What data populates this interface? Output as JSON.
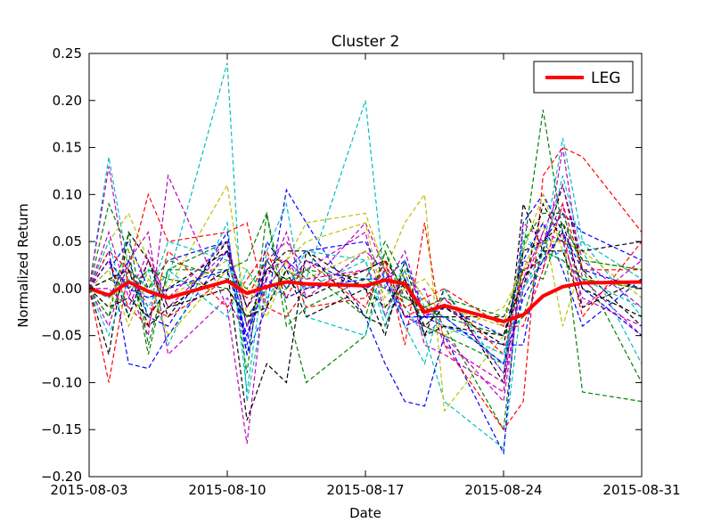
{
  "chart_data": {
    "type": "line",
    "title": "Cluster 2",
    "xlabel": "Date",
    "ylabel": "Normalized Return",
    "x_tick_labels": [
      "2015-08-03",
      "2015-08-10",
      "2015-08-17",
      "2015-08-24",
      "2015-08-31"
    ],
    "y_tick_labels": [
      "0.25",
      "0.20",
      "0.15",
      "0.10",
      "0.05",
      "0.00",
      "−0.05",
      "−0.10",
      "−0.15",
      "−0.20"
    ],
    "xlim": [
      "2015-08-03",
      "2015-08-31"
    ],
    "ylim": [
      -0.2,
      0.25
    ],
    "grid": false,
    "legend": {
      "position": "top-right",
      "entries": [
        {
          "name": "LEG",
          "color": "#ff0000"
        }
      ]
    },
    "x": [
      "2015-08-03",
      "2015-08-04",
      "2015-08-05",
      "2015-08-06",
      "2015-08-07",
      "2015-08-10",
      "2015-08-11",
      "2015-08-12",
      "2015-08-13",
      "2015-08-14",
      "2015-08-17",
      "2015-08-18",
      "2015-08-19",
      "2015-08-20",
      "2015-08-21",
      "2015-08-24",
      "2015-08-25",
      "2015-08-26",
      "2015-08-27",
      "2015-08-28",
      "2015-08-31"
    ],
    "series": [
      {
        "name": "LEG",
        "style": "solid",
        "color": "#ff0000",
        "values": [
          0.0,
          -0.007,
          0.007,
          -0.003,
          -0.01,
          0.008,
          -0.005,
          0.002,
          0.007,
          0.005,
          0.003,
          0.009,
          0.005,
          -0.025,
          -0.018,
          -0.035,
          -0.028,
          -0.008,
          0.002,
          0.006,
          0.007
        ]
      },
      {
        "style": "dashed",
        "color": "#00bfbf",
        "values": [
          0.0,
          0.14,
          0.02,
          -0.03,
          0.01,
          0.24,
          -0.12,
          0.0,
          0.03,
          0.01,
          0.2,
          0.0,
          -0.02,
          -0.05,
          -0.12,
          -0.17,
          0.0,
          0.04,
          0.16,
          0.05,
          -0.03
        ]
      },
      {
        "style": "dashed",
        "color": "#bf00bf",
        "values": [
          0.0,
          0.13,
          0.0,
          -0.05,
          0.12,
          -0.02,
          -0.165,
          0.02,
          0.03,
          0.0,
          0.07,
          0.02,
          -0.03,
          -0.04,
          -0.05,
          -0.12,
          0.03,
          0.02,
          0.15,
          0.01,
          -0.05
        ]
      },
      {
        "style": "dashed",
        "color": "#bfbf00",
        "values": [
          0.0,
          0.05,
          0.08,
          0.03,
          0.0,
          0.11,
          -0.03,
          0.0,
          0.03,
          0.07,
          0.08,
          0.02,
          0.07,
          0.1,
          -0.13,
          -0.05,
          0.02,
          0.07,
          -0.04,
          0.03,
          0.02
        ]
      },
      {
        "style": "dashed",
        "color": "#008000",
        "values": [
          0.0,
          0.09,
          0.04,
          -0.07,
          0.02,
          0.05,
          -0.09,
          0.08,
          -0.02,
          -0.1,
          -0.05,
          0.04,
          -0.02,
          -0.01,
          -0.04,
          -0.15,
          0.04,
          0.19,
          0.06,
          -0.11,
          -0.12
        ]
      },
      {
        "style": "dashed",
        "color": "#0000ff",
        "values": [
          0.0,
          0.04,
          -0.08,
          -0.085,
          -0.05,
          0.04,
          -0.07,
          -0.02,
          0.105,
          0.07,
          -0.03,
          -0.08,
          -0.12,
          -0.125,
          -0.05,
          -0.175,
          0.07,
          0.1,
          0.06,
          0.0,
          -0.05
        ]
      },
      {
        "style": "dashed",
        "color": "#000000",
        "values": [
          0.0,
          -0.07,
          0.06,
          0.03,
          -0.02,
          0.02,
          -0.14,
          -0.08,
          -0.1,
          0.04,
          0.0,
          -0.05,
          0.03,
          -0.05,
          0.0,
          -0.1,
          0.09,
          0.04,
          0.11,
          0.02,
          -0.04
        ]
      },
      {
        "style": "dashed",
        "color": "#ff0000",
        "values": [
          0.0,
          -0.1,
          0.02,
          0.1,
          0.05,
          0.06,
          0.07,
          -0.02,
          -0.03,
          0.0,
          0.02,
          0.03,
          -0.06,
          0.07,
          -0.06,
          -0.15,
          -0.12,
          0.12,
          0.15,
          0.14,
          0.06
        ]
      },
      {
        "style": "dashed",
        "color": "#00bfbf",
        "values": [
          0.0,
          0.05,
          -0.03,
          0.02,
          -0.06,
          0.07,
          -0.11,
          0.04,
          0.09,
          -0.03,
          -0.05,
          0.02,
          -0.04,
          -0.08,
          0.0,
          -0.09,
          0.06,
          0.03,
          0.12,
          0.04,
          -0.08
        ]
      },
      {
        "style": "dashed",
        "color": "#bf00bf",
        "values": [
          0.0,
          -0.04,
          0.03,
          0.06,
          -0.07,
          -0.01,
          -0.05,
          0.03,
          0.05,
          0.02,
          0.06,
          -0.03,
          0.02,
          -0.06,
          -0.07,
          -0.11,
          0.07,
          0.05,
          0.09,
          -0.02,
          0.03
        ]
      },
      {
        "style": "dashed",
        "color": "#0000ff",
        "values": [
          0.0,
          0.02,
          0.05,
          0.0,
          0.03,
          0.05,
          -0.06,
          0.05,
          0.02,
          0.04,
          0.05,
          0.01,
          0.03,
          -0.03,
          -0.04,
          -0.06,
          -0.06,
          0.05,
          0.08,
          0.06,
          0.03
        ]
      },
      {
        "style": "dashed",
        "color": "#008000",
        "values": [
          0.0,
          -0.03,
          0.06,
          -0.06,
          0.02,
          0.02,
          0.03,
          0.08,
          -0.04,
          -0.02,
          0.01,
          0.05,
          0.01,
          -0.04,
          -0.05,
          -0.08,
          0.05,
          0.08,
          0.08,
          0.02,
          -0.1
        ]
      },
      {
        "style": "dashed",
        "color": "#000000",
        "values": [
          0.0,
          0.03,
          -0.03,
          0.03,
          -0.03,
          0.05,
          -0.04,
          0.02,
          0.04,
          0.04,
          -0.03,
          -0.04,
          0.01,
          -0.03,
          -0.03,
          -0.03,
          0.0,
          0.09,
          0.05,
          0.04,
          0.05
        ]
      },
      {
        "style": "dashed",
        "color": "#bfbf00",
        "values": [
          0.0,
          -0.02,
          0.04,
          0.01,
          -0.01,
          0.03,
          0.02,
          -0.02,
          0.03,
          0.05,
          0.07,
          -0.02,
          0.0,
          0.01,
          -0.02,
          -0.04,
          0.04,
          0.1,
          0.04,
          0.01,
          0.0
        ]
      },
      {
        "style": "dashed",
        "color": "#ff0000",
        "values": [
          0.0,
          0.03,
          -0.02,
          -0.04,
          0.04,
          -0.02,
          0.01,
          0.04,
          -0.01,
          0.03,
          -0.02,
          0.03,
          -0.03,
          -0.02,
          -0.01,
          -0.07,
          0.02,
          0.03,
          0.06,
          -0.03,
          0.05
        ]
      },
      {
        "style": "dashed",
        "color": "#00bfbf",
        "values": [
          0.0,
          -0.05,
          0.01,
          -0.01,
          0.05,
          0.03,
          -0.04,
          -0.01,
          0.02,
          0.0,
          0.03,
          -0.04,
          0.02,
          -0.05,
          -0.03,
          -0.08,
          0.05,
          0.04,
          0.03,
          0.01,
          -0.02
        ]
      },
      {
        "style": "dashed",
        "color": "#bf00bf",
        "values": [
          0.0,
          0.06,
          -0.01,
          0.04,
          -0.02,
          0.04,
          -0.02,
          0.01,
          0.06,
          -0.01,
          0.04,
          0.02,
          -0.01,
          0.0,
          -0.06,
          -0.1,
          0.0,
          0.06,
          0.11,
          0.03,
          -0.02
        ]
      },
      {
        "style": "dashed",
        "color": "#0000ff",
        "values": [
          0.0,
          -0.01,
          0.03,
          -0.03,
          -0.04,
          0.06,
          -0.07,
          0.03,
          0.0,
          0.03,
          0.0,
          0.01,
          -0.03,
          -0.03,
          -0.02,
          -0.05,
          0.03,
          0.07,
          0.02,
          -0.04,
          0.01
        ]
      },
      {
        "style": "dashed",
        "color": "#008000",
        "values": [
          0.0,
          0.01,
          0.0,
          0.02,
          0.01,
          0.0,
          -0.03,
          0.0,
          0.01,
          0.02,
          0.01,
          0.0,
          -0.01,
          -0.02,
          -0.03,
          -0.05,
          -0.03,
          0.04,
          0.03,
          0.01,
          0.0
        ]
      },
      {
        "style": "dashed",
        "color": "#000000",
        "values": [
          0.0,
          -0.02,
          -0.01,
          -0.03,
          0.0,
          0.04,
          -0.02,
          0.02,
          0.01,
          -0.01,
          0.02,
          0.03,
          0.0,
          -0.04,
          -0.02,
          -0.06,
          0.04,
          0.05,
          0.07,
          0.0,
          -0.03
        ]
      },
      {
        "style": "dashed",
        "color": "#bfbf00",
        "values": [
          0.0,
          0.02,
          -0.04,
          0.01,
          -0.05,
          0.02,
          0.0,
          -0.03,
          0.02,
          0.01,
          0.04,
          -0.01,
          0.02,
          -0.01,
          -0.05,
          -0.02,
          0.02,
          0.05,
          0.05,
          0.04,
          -0.01
        ]
      },
      {
        "style": "dashed",
        "color": "#ff0000",
        "values": [
          0.0,
          0.04,
          0.02,
          -0.02,
          -0.03,
          0.01,
          -0.01,
          0.03,
          0.03,
          -0.02,
          -0.01,
          0.02,
          -0.02,
          -0.01,
          0.0,
          -0.04,
          -0.04,
          0.02,
          0.09,
          0.02,
          0.02
        ]
      },
      {
        "style": "dashed",
        "color": "#00bfbf",
        "values": [
          0.0,
          -0.01,
          0.01,
          -0.02,
          0.02,
          -0.03,
          0.02,
          -0.01,
          0.0,
          0.04,
          0.03,
          -0.03,
          0.03,
          -0.02,
          -0.04,
          -0.07,
          0.0,
          0.03,
          0.04,
          0.05,
          0.01
        ]
      },
      {
        "style": "dashed",
        "color": "#bf00bf",
        "values": [
          0.0,
          0.0,
          -0.02,
          0.03,
          -0.01,
          0.05,
          -0.04,
          0.0,
          0.03,
          0.01,
          0.02,
          0.0,
          0.04,
          -0.03,
          -0.01,
          -0.09,
          0.01,
          0.06,
          0.05,
          -0.01,
          -0.04
        ]
      },
      {
        "style": "dashed",
        "color": "#0000ff",
        "values": [
          0.0,
          0.03,
          0.0,
          -0.01,
          0.0,
          0.02,
          -0.05,
          0.01,
          -0.01,
          0.0,
          0.01,
          0.01,
          -0.04,
          -0.03,
          -0.03,
          -0.08,
          -0.01,
          0.03,
          0.06,
          0.02,
          0.0
        ]
      },
      {
        "style": "dashed",
        "color": "#008000",
        "values": [
          0.0,
          -0.03,
          0.02,
          0.0,
          0.03,
          0.01,
          0.0,
          0.03,
          0.0,
          0.02,
          -0.03,
          0.04,
          -0.01,
          -0.02,
          -0.01,
          -0.03,
          0.02,
          0.01,
          0.07,
          0.03,
          0.02
        ]
      },
      {
        "style": "dashed",
        "color": "#000000",
        "values": [
          0.0,
          0.01,
          0.02,
          -0.04,
          -0.02,
          0.0,
          -0.03,
          -0.02,
          0.02,
          -0.03,
          0.0,
          -0.02,
          0.01,
          -0.05,
          -0.04,
          -0.05,
          0.01,
          0.04,
          0.04,
          -0.02,
          0.01
        ]
      }
    ]
  }
}
